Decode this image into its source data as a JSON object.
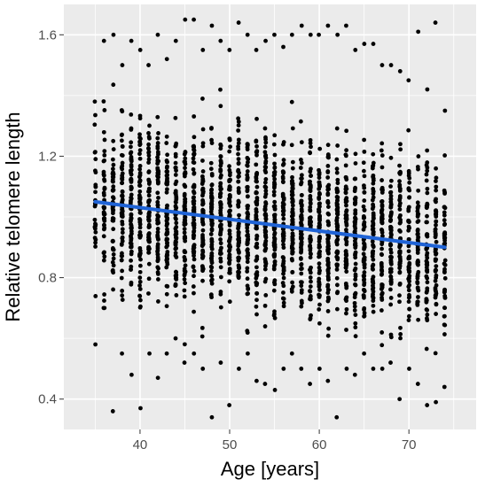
{
  "chart_data": {
    "type": "scatter",
    "xlabel": "Age [years]",
    "ylabel": "Relative telomere length",
    "xlim": [
      31.5,
      77.5
    ],
    "ylim": [
      0.3,
      1.7
    ],
    "x_ticks": [
      40,
      50,
      60,
      70
    ],
    "y_ticks": [
      0.4,
      0.8,
      1.2,
      1.6
    ],
    "x_tick_labels": [
      "40",
      "50",
      "60",
      "70"
    ],
    "y_tick_labels": [
      "0.4",
      "0.8",
      "1.2",
      "1.6"
    ],
    "x_minor_ticks": [
      35,
      45,
      55,
      65,
      75
    ],
    "y_minor_ticks": [
      0.6,
      1.0,
      1.4
    ],
    "grid": true,
    "panel_background": "#ebebeb",
    "grid_color": "#ffffff",
    "point_color": "#000000",
    "trend_color": "#1f63d6",
    "ages": [
      35,
      74
    ],
    "trend_line": {
      "x": [
        35,
        74
      ],
      "y": [
        1.05,
        0.9
      ]
    },
    "point_density": [
      {
        "x": 35,
        "y_min": 0.58,
        "y_max": 1.38,
        "n": 28
      },
      {
        "x": 36,
        "y_min": 0.7,
        "y_max": 1.58,
        "n": 46
      },
      {
        "x": 37,
        "y_min": 0.36,
        "y_max": 1.6,
        "n": 58
      },
      {
        "x": 38,
        "y_min": 0.55,
        "y_max": 1.5,
        "n": 62
      },
      {
        "x": 39,
        "y_min": 0.48,
        "y_max": 1.58,
        "n": 66
      },
      {
        "x": 40,
        "y_min": 0.37,
        "y_max": 1.55,
        "n": 68
      },
      {
        "x": 41,
        "y_min": 0.55,
        "y_max": 1.5,
        "n": 66
      },
      {
        "x": 42,
        "y_min": 0.47,
        "y_max": 1.6,
        "n": 66
      },
      {
        "x": 43,
        "y_min": 0.55,
        "y_max": 1.52,
        "n": 66
      },
      {
        "x": 44,
        "y_min": 0.6,
        "y_max": 1.58,
        "n": 68
      },
      {
        "x": 45,
        "y_min": 0.52,
        "y_max": 1.65,
        "n": 70
      },
      {
        "x": 46,
        "y_min": 0.55,
        "y_max": 1.65,
        "n": 70
      },
      {
        "x": 47,
        "y_min": 0.5,
        "y_max": 1.55,
        "n": 68
      },
      {
        "x": 48,
        "y_min": 0.34,
        "y_max": 1.63,
        "n": 68
      },
      {
        "x": 49,
        "y_min": 0.52,
        "y_max": 1.58,
        "n": 68
      },
      {
        "x": 50,
        "y_min": 0.38,
        "y_max": 1.55,
        "n": 70
      },
      {
        "x": 51,
        "y_min": 0.5,
        "y_max": 1.64,
        "n": 70
      },
      {
        "x": 52,
        "y_min": 0.55,
        "y_max": 1.6,
        "n": 68
      },
      {
        "x": 53,
        "y_min": 0.46,
        "y_max": 1.55,
        "n": 68
      },
      {
        "x": 54,
        "y_min": 0.45,
        "y_max": 1.58,
        "n": 68
      },
      {
        "x": 55,
        "y_min": 0.43,
        "y_max": 1.6,
        "n": 68
      },
      {
        "x": 56,
        "y_min": 0.5,
        "y_max": 1.56,
        "n": 68
      },
      {
        "x": 57,
        "y_min": 0.55,
        "y_max": 1.6,
        "n": 68
      },
      {
        "x": 58,
        "y_min": 0.5,
        "y_max": 1.63,
        "n": 70
      },
      {
        "x": 59,
        "y_min": 0.45,
        "y_max": 1.6,
        "n": 70
      },
      {
        "x": 60,
        "y_min": 0.5,
        "y_max": 1.6,
        "n": 70
      },
      {
        "x": 61,
        "y_min": 0.46,
        "y_max": 1.63,
        "n": 68
      },
      {
        "x": 62,
        "y_min": 0.34,
        "y_max": 1.6,
        "n": 68
      },
      {
        "x": 63,
        "y_min": 0.5,
        "y_max": 1.63,
        "n": 68
      },
      {
        "x": 64,
        "y_min": 0.48,
        "y_max": 1.55,
        "n": 68
      },
      {
        "x": 65,
        "y_min": 0.55,
        "y_max": 1.57,
        "n": 66
      },
      {
        "x": 66,
        "y_min": 0.5,
        "y_max": 1.57,
        "n": 66
      },
      {
        "x": 67,
        "y_min": 0.5,
        "y_max": 1.5,
        "n": 64
      },
      {
        "x": 68,
        "y_min": 0.52,
        "y_max": 1.5,
        "n": 62
      },
      {
        "x": 69,
        "y_min": 0.4,
        "y_max": 1.48,
        "n": 60
      },
      {
        "x": 70,
        "y_min": 0.5,
        "y_max": 1.45,
        "n": 60
      },
      {
        "x": 71,
        "y_min": 0.45,
        "y_max": 1.61,
        "n": 58
      },
      {
        "x": 72,
        "y_min": 0.38,
        "y_max": 1.42,
        "n": 56
      },
      {
        "x": 73,
        "y_min": 0.39,
        "y_max": 1.64,
        "n": 54
      },
      {
        "x": 74,
        "y_min": 0.44,
        "y_max": 1.35,
        "n": 50
      }
    ]
  }
}
